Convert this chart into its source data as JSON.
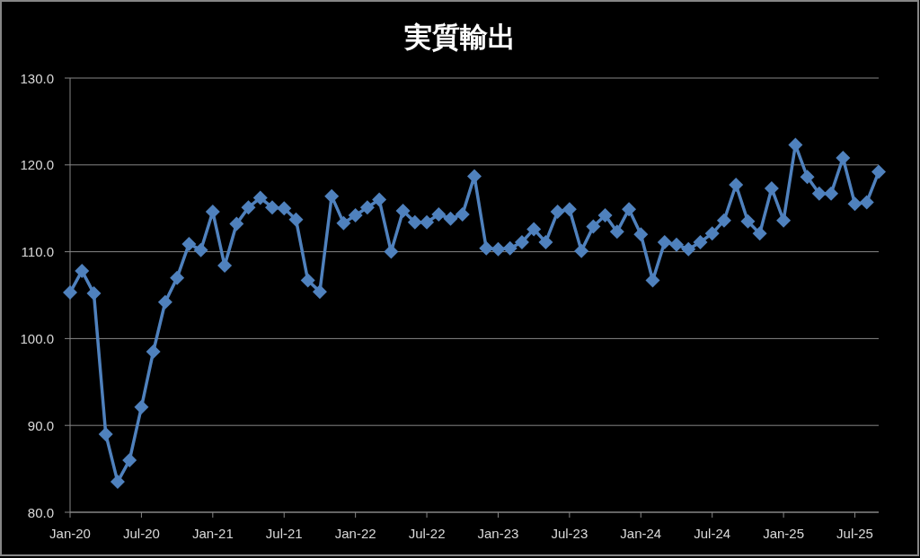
{
  "chart_data": {
    "type": "line",
    "title": "実質輸出",
    "x": [
      "2020-01",
      "2020-02",
      "2020-03",
      "2020-04",
      "2020-05",
      "2020-06",
      "2020-07",
      "2020-08",
      "2020-09",
      "2020-10",
      "2020-11",
      "2020-12",
      "2021-01",
      "2021-02",
      "2021-03",
      "2021-04",
      "2021-05",
      "2021-06",
      "2021-07",
      "2021-08",
      "2021-09",
      "2021-10",
      "2021-11",
      "2021-12",
      "2022-01",
      "2022-02",
      "2022-03",
      "2022-04",
      "2022-05",
      "2022-06",
      "2022-07",
      "2022-08",
      "2022-09",
      "2022-10",
      "2022-11",
      "2022-12",
      "2023-01",
      "2023-02",
      "2023-03",
      "2023-04",
      "2023-05",
      "2023-06",
      "2023-07",
      "2023-08",
      "2023-09",
      "2023-10",
      "2023-11",
      "2023-12",
      "2024-01",
      "2024-02",
      "2024-03",
      "2024-04",
      "2024-05",
      "2024-06",
      "2024-07",
      "2024-08",
      "2024-09",
      "2024-10",
      "2024-11",
      "2024-12",
      "2025-01",
      "2025-02",
      "2025-03",
      "2025-04",
      "2025-05",
      "2025-06",
      "2025-07",
      "2025-08",
      "2025-09"
    ],
    "series": [
      {
        "color": "#4f81bd",
        "values": [
          105.3,
          107.8,
          105.2,
          89.0,
          83.5,
          86.0,
          92.1,
          98.5,
          104.2,
          107.0,
          110.9,
          110.2,
          114.6,
          108.4,
          113.2,
          115.1,
          116.2,
          115.1,
          115.0,
          113.7,
          106.7,
          105.4,
          116.4,
          113.3,
          114.2,
          115.1,
          116.0,
          110.0,
          114.7,
          113.4,
          113.4,
          114.3,
          113.8,
          114.3,
          118.7,
          110.4,
          110.3,
          110.4,
          111.1,
          112.6,
          111.1,
          114.6,
          114.9,
          110.1,
          112.9,
          114.2,
          112.3,
          114.9,
          112.0,
          106.7,
          111.1,
          110.8,
          110.3,
          111.1,
          112.1,
          113.6,
          117.7,
          113.5,
          112.1,
          117.3,
          113.6,
          122.3,
          118.6,
          116.7,
          116.7,
          120.8,
          115.5,
          115.7,
          119.2
        ]
      }
    ],
    "xlim": [
      "2020-01",
      "2025-09"
    ],
    "xticks": [
      {
        "value": "2020-01",
        "label": "Jan-20"
      },
      {
        "value": "2020-07",
        "label": "Jul-20"
      },
      {
        "value": "2021-01",
        "label": "Jan-21"
      },
      {
        "value": "2021-07",
        "label": "Jul-21"
      },
      {
        "value": "2022-01",
        "label": "Jan-22"
      },
      {
        "value": "2022-07",
        "label": "Jul-22"
      },
      {
        "value": "2023-01",
        "label": "Jan-23"
      },
      {
        "value": "2023-07",
        "label": "Jul-23"
      },
      {
        "value": "2024-01",
        "label": "Jan-24"
      },
      {
        "value": "2024-07",
        "label": "Jul-24"
      },
      {
        "value": "2025-01",
        "label": "Jan-25"
      },
      {
        "value": "2025-07",
        "label": "Jul-25"
      }
    ],
    "ylim": [
      80,
      130
    ],
    "yticks": [
      {
        "value": 80,
        "label": "80.0"
      },
      {
        "value": 90,
        "label": "90.0"
      },
      {
        "value": 100,
        "label": "100.0"
      },
      {
        "value": 110,
        "label": "110.0"
      },
      {
        "value": 120,
        "label": "120.0"
      },
      {
        "value": 130,
        "label": "130.0"
      }
    ],
    "grid": "y",
    "marker": "diamond"
  }
}
